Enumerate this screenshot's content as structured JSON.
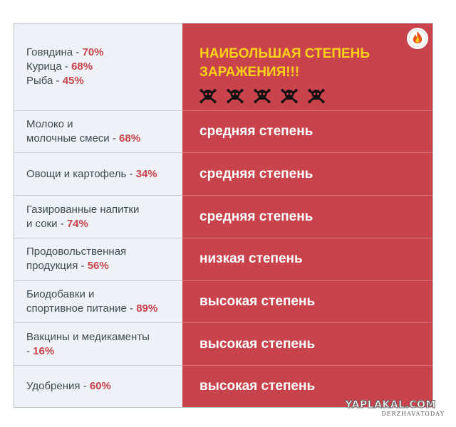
{
  "rows": [
    {
      "left_lines": [
        {
          "text": "Говядина - ",
          "pct": "70%"
        },
        {
          "text": "Курица - ",
          "pct": "68%"
        },
        {
          "text": "Рыба - ",
          "pct": "45%"
        }
      ],
      "right_lines": [
        "НАИБОЛЬШАЯ СТЕПЕНЬ",
        "ЗАРАЖЕНИЯ!!!"
      ],
      "skull_count": 5
    },
    {
      "left_lines": [
        {
          "text": "Молоко и",
          "pct": ""
        },
        {
          "text": "молочные смеси - ",
          "pct": "68%"
        }
      ],
      "right": "средняя степень"
    },
    {
      "left_lines": [
        {
          "text": "Овощи и картофель - ",
          "pct": "34%"
        }
      ],
      "right": "средняя степень"
    },
    {
      "left_lines": [
        {
          "text": "Газированные напитки",
          "pct": ""
        },
        {
          "text": "и соки - ",
          "pct": "74%"
        }
      ],
      "right": "средняя степень"
    },
    {
      "left_lines": [
        {
          "text": "Продовольственная",
          "pct": ""
        },
        {
          "text": "продукция - ",
          "pct": "56%"
        }
      ],
      "right": "низкая степень"
    },
    {
      "left_lines": [
        {
          "text": "Биодобавки и",
          "pct": ""
        },
        {
          "text": "спортивное питание - ",
          "pct": "89%"
        }
      ],
      "right": "высокая степень"
    },
    {
      "left_lines": [
        {
          "text": "Вакцины и медикаменты",
          "pct": ""
        },
        {
          "text": "- ",
          "pct": "16%"
        }
      ],
      "right": "высокая степень"
    },
    {
      "left_lines": [
        {
          "text": "Удобрения - ",
          "pct": "60%"
        }
      ],
      "right": "высокая степень"
    }
  ],
  "watermark": {
    "main": "YAPLAKAL.COM",
    "sub": "DERZHAVATODAY"
  },
  "colors": {
    "accent_red": "#c8434b",
    "alert_yellow": "#ffd21a",
    "left_bg": "#eef2f6"
  },
  "icons": {
    "skull": "skull-crossbones-icon",
    "logo": "flame-logo-icon"
  }
}
